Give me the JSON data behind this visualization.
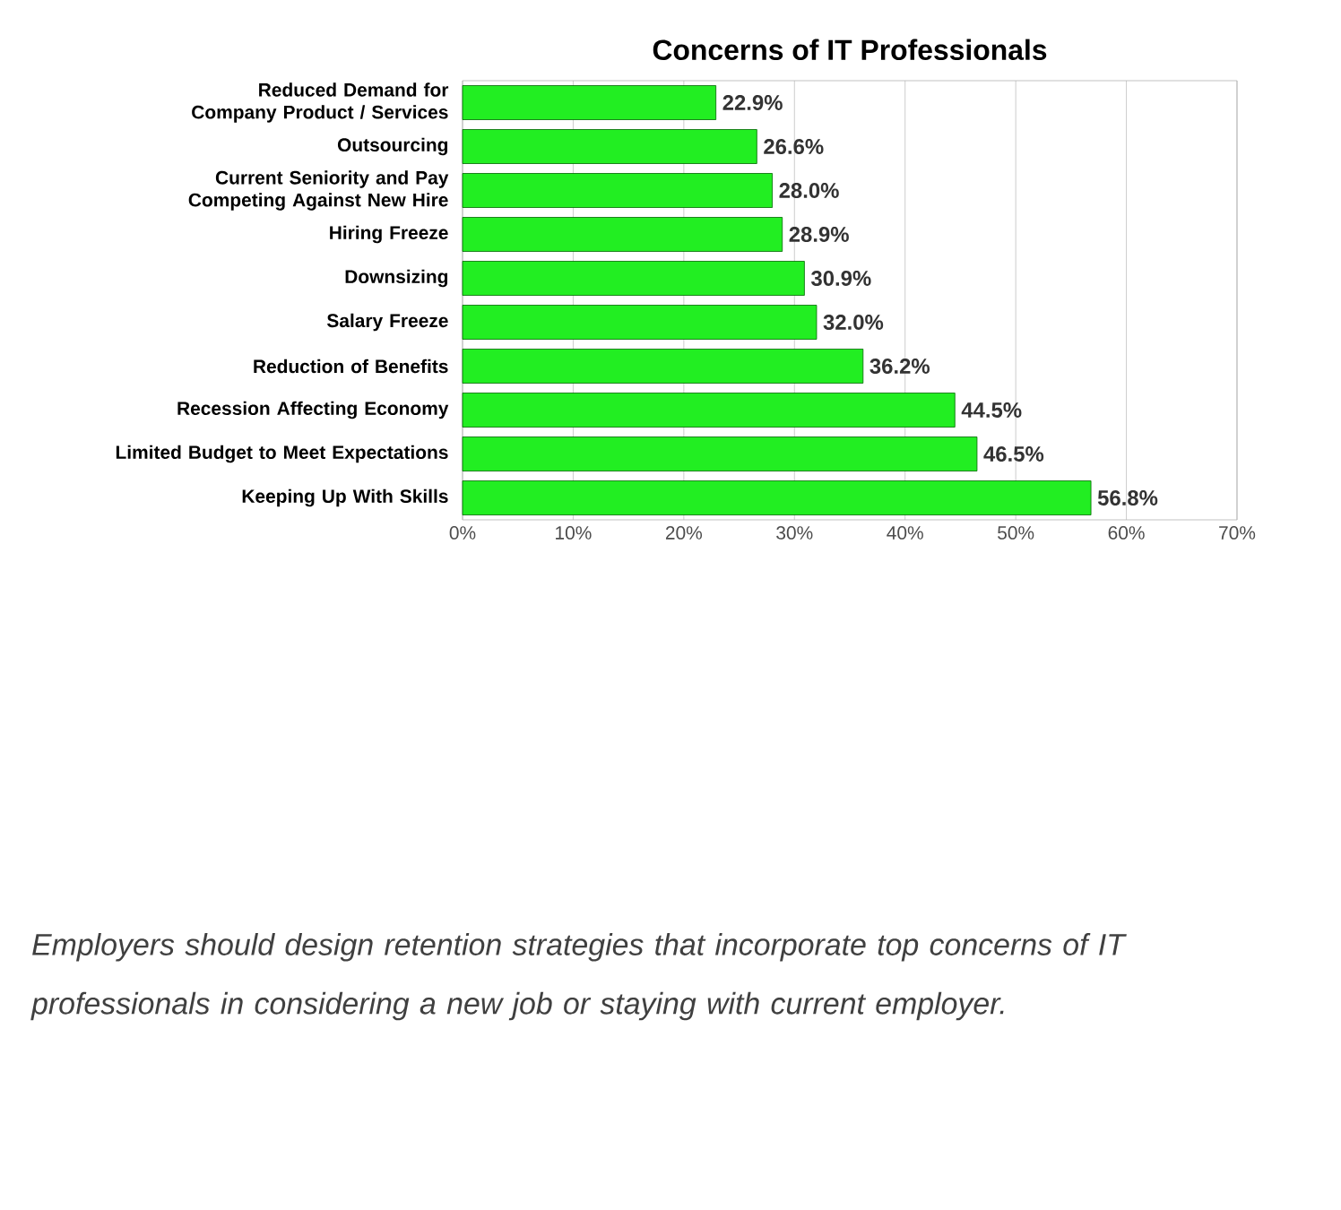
{
  "chart_data": {
    "type": "bar",
    "orientation": "horizontal",
    "title": "Concerns of IT Professionals",
    "categories": [
      "Reduced Demand for Company Product / Services",
      "Outsourcing",
      "Current Seniority and Pay Competing Against New Hire",
      "Hiring Freeze",
      "Downsizing",
      "Salary Freeze",
      "Reduction of Benefits",
      "Recession Affecting Economy",
      "Limited Budget to Meet Expectations",
      "Keeping Up With Skills"
    ],
    "values": [
      22.9,
      26.6,
      28.0,
      28.9,
      30.9,
      32.0,
      36.2,
      44.5,
      46.5,
      56.8
    ],
    "value_labels": [
      "22.9%",
      "26.6%",
      "28.0%",
      "28.9%",
      "30.9%",
      "32.0%",
      "36.2%",
      "44.5%",
      "46.5%",
      "56.8%"
    ],
    "color": "#22ee22",
    "xlim": [
      0,
      70
    ],
    "xticks": [
      {
        "value": 0,
        "label": "0%"
      },
      {
        "value": 10,
        "label": "10%"
      },
      {
        "value": 20,
        "label": "20%"
      },
      {
        "value": 30,
        "label": "30%"
      },
      {
        "value": 40,
        "label": "40%"
      },
      {
        "value": 50,
        "label": "50%"
      },
      {
        "value": 60,
        "label": "60%"
      },
      {
        "value": 70,
        "label": "70%"
      }
    ],
    "grid": "x",
    "annotations": [
      "Employers should design retention strategies that incorporate top concerns of IT professionals in considering a new job or staying with current employer."
    ]
  }
}
